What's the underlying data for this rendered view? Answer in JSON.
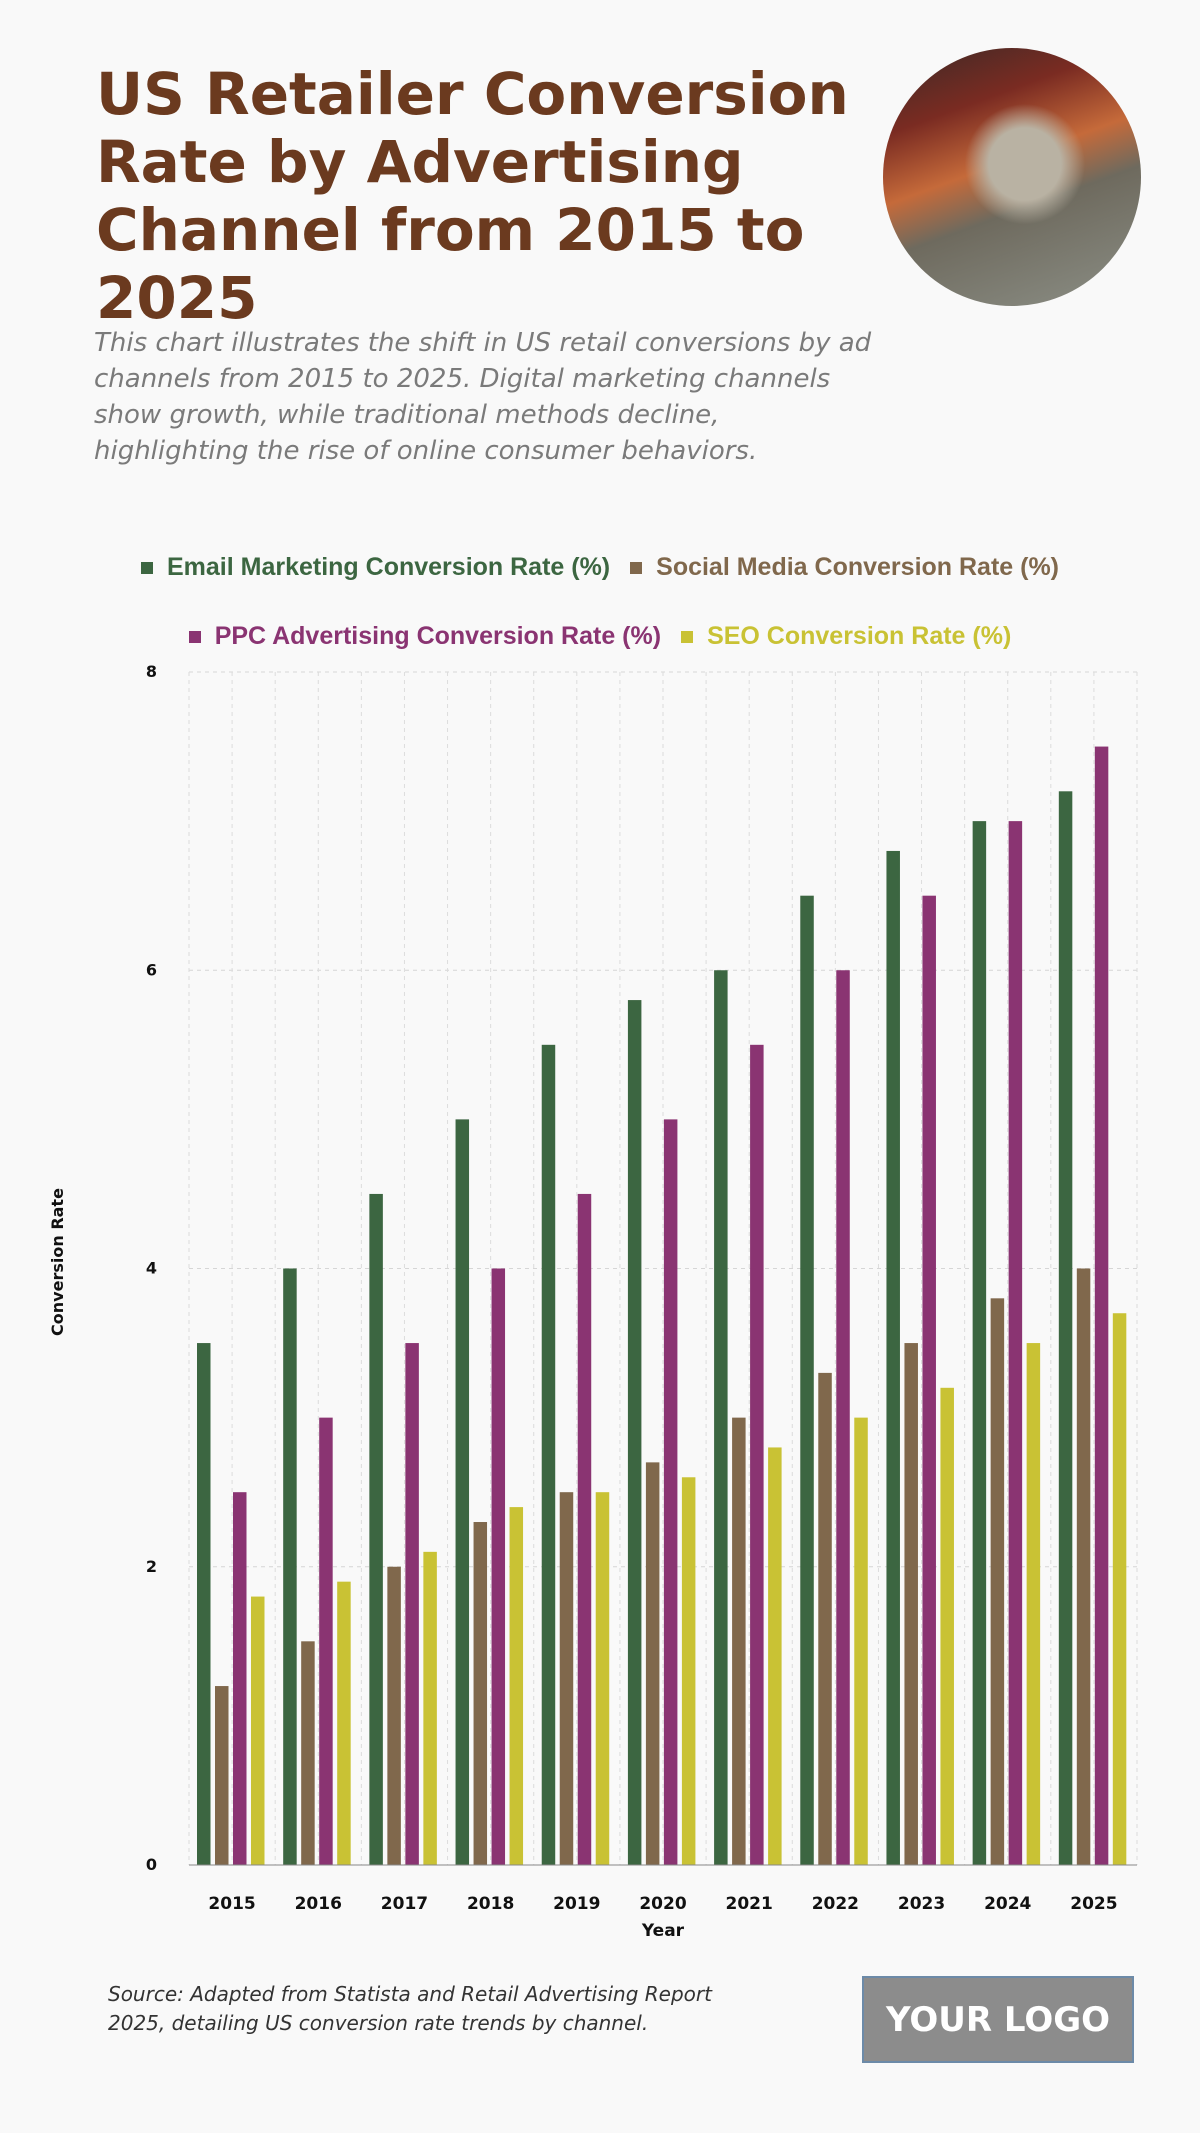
{
  "header": {
    "title": "US Retailer Conversion Rate by Advertising Channel from 2015 to 2025",
    "subtitle": "This chart illustrates the shift in US retail conversions by ad channels from 2015 to 2025. Digital marketing channels show growth, while traditional methods decline, highlighting the rise of online consumer behaviors."
  },
  "footer": {
    "source": "Source: Adapted from Statista and Retail Advertising Report 2025, detailing US conversion rate trends by channel.",
    "logo": "YOUR LOGO"
  },
  "chart_data": {
    "type": "bar",
    "xlabel": "Year",
    "ylabel": "Conversion Rate",
    "ylim": [
      0,
      8
    ],
    "yticks": [
      0,
      2,
      4,
      6,
      8
    ],
    "grid": true,
    "legend_placement": "top",
    "categories": [
      "2015",
      "2016",
      "2017",
      "2018",
      "2019",
      "2020",
      "2021",
      "2022",
      "2023",
      "2024",
      "2025"
    ],
    "series": [
      {
        "name": "Email Marketing Conversion Rate (%)",
        "color": "#3c6641",
        "values": [
          3.5,
          4,
          4.5,
          5,
          5.5,
          5.8,
          6,
          6.5,
          6.8,
          7,
          7.2
        ]
      },
      {
        "name": "Social Media Conversion Rate (%)",
        "color": "#80684c",
        "values": [
          1.2,
          1.5,
          2,
          2.3,
          2.5,
          2.7,
          3,
          3.3,
          3.5,
          3.8,
          4
        ]
      },
      {
        "name": "PPC Advertising Conversion Rate (%)",
        "color": "#8a3472",
        "values": [
          2.5,
          3,
          3.5,
          4,
          4.5,
          5,
          5.5,
          6,
          6.5,
          7,
          7.5
        ]
      },
      {
        "name": "SEO Conversion Rate (%)",
        "color": "#c9c234",
        "values": [
          1.8,
          1.9,
          2.1,
          2.4,
          2.5,
          2.6,
          2.8,
          3,
          3.2,
          3.5,
          3.7
        ]
      }
    ]
  }
}
